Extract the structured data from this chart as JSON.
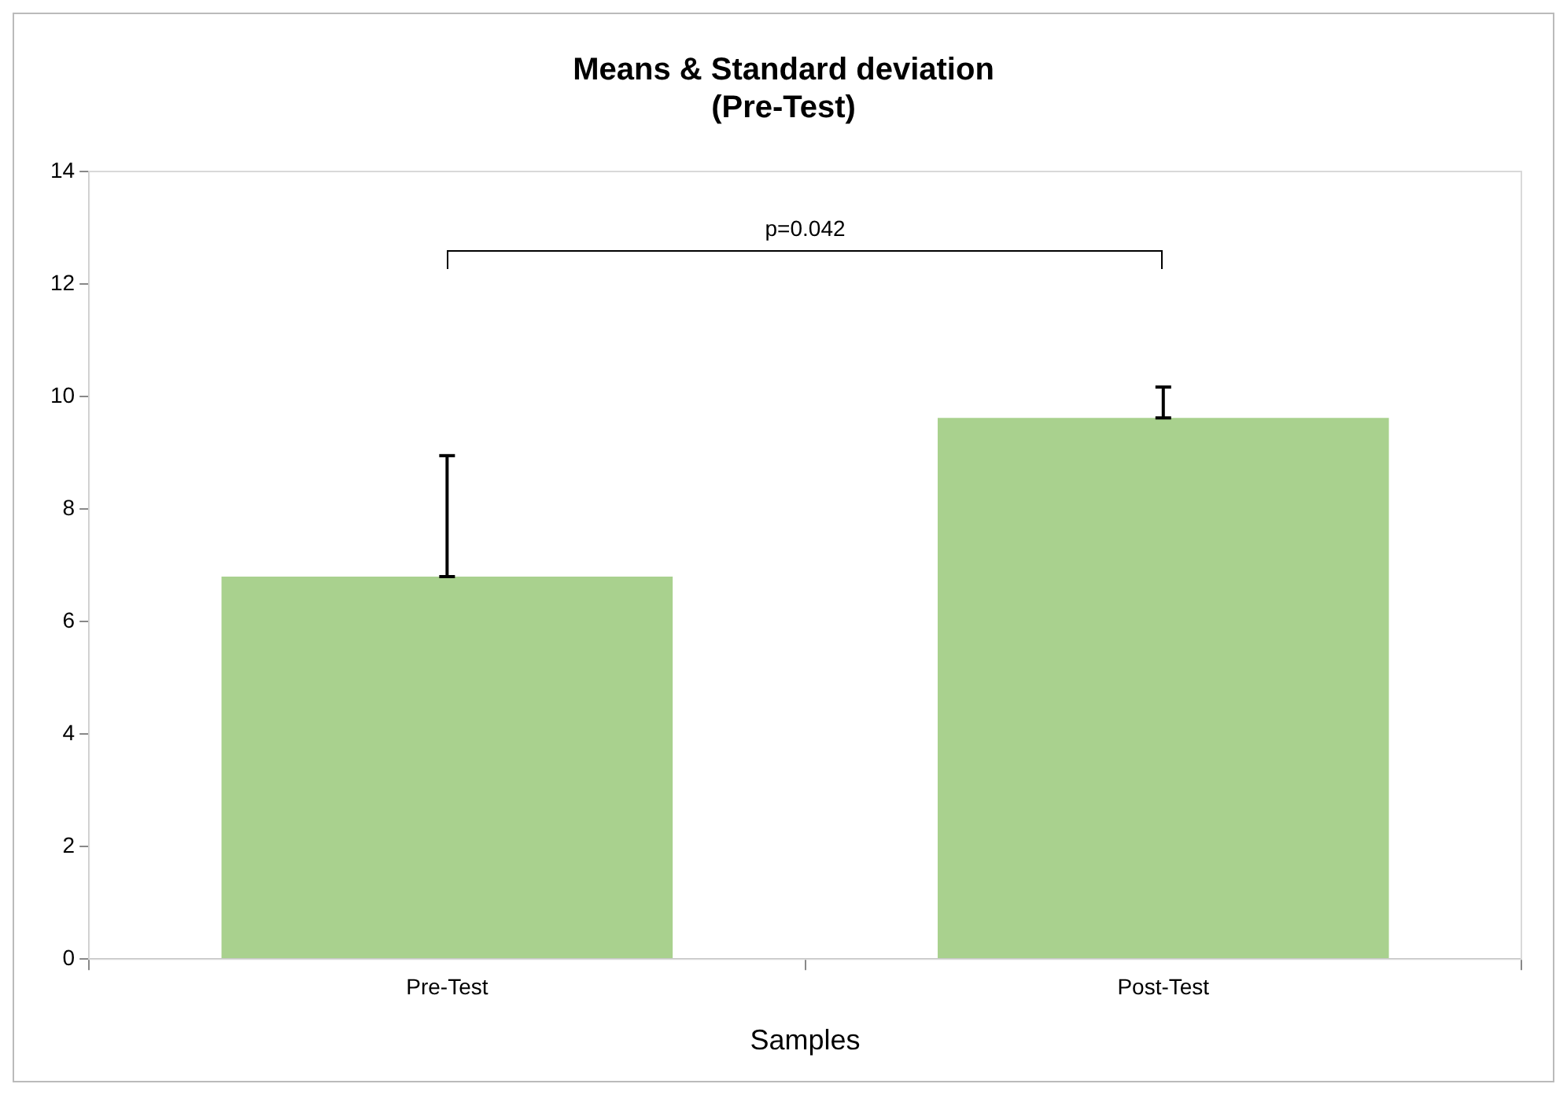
{
  "chart_data": {
    "type": "bar",
    "title": "Means & Standard deviation\n(Pre-Test)",
    "xlabel": "Samples",
    "categories": [
      "Pre-Test",
      "Post-Test"
    ],
    "values": [
      6.8,
      9.62
    ],
    "errors": [
      [
        6.8,
        8.95
      ],
      [
        9.62,
        10.17
      ]
    ],
    "color": "#a9d18e",
    "ylim": [
      0,
      14
    ],
    "yticks": [
      0,
      2,
      4,
      6,
      8,
      10,
      12,
      14
    ],
    "annotations": [
      "p=0.042"
    ],
    "grid": false,
    "legend": false
  }
}
